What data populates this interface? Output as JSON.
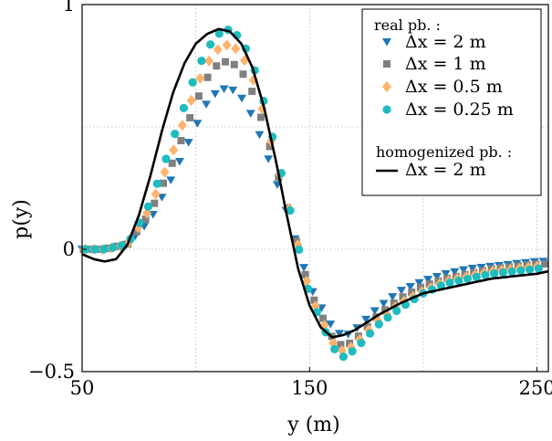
{
  "chart_data": {
    "type": "scatter",
    "xlabel": "y (m)",
    "ylabel": "p(y)",
    "xlim": [
      50,
      255
    ],
    "ylim": [
      -0.5,
      1
    ],
    "grid": true,
    "x_ticks": [
      50,
      150,
      250
    ],
    "x_tick_labels": [
      "50",
      "150",
      "250"
    ],
    "y_ticks": [
      -0.5,
      0,
      1
    ],
    "y_tick_labels": [
      "−0.5",
      "0",
      "1"
    ],
    "legend": {
      "placement": "top-right",
      "group1_title": "real pb. :",
      "group2_title": "homogenized pb. :"
    },
    "series": [
      {
        "name": "Δx = 2 m",
        "kind": "markers",
        "marker": "triangle-down",
        "color": "#1f77b4",
        "x": [
          50,
          60,
          70,
          80,
          90,
          100,
          105,
          110,
          115,
          120,
          125,
          130,
          140,
          150,
          160,
          165,
          170,
          180,
          190,
          200,
          210,
          220,
          230,
          240,
          250,
          255
        ],
        "y": [
          0,
          0,
          0.02,
          0.12,
          0.3,
          0.5,
          0.6,
          0.65,
          0.66,
          0.62,
          0.54,
          0.42,
          0.15,
          -0.15,
          -0.32,
          -0.36,
          -0.33,
          -0.24,
          -0.17,
          -0.13,
          -0.1,
          -0.08,
          -0.07,
          -0.06,
          -0.05,
          -0.05
        ]
      },
      {
        "name": "Δx = 1 m",
        "kind": "markers",
        "marker": "square",
        "color": "#808080",
        "x": [
          50,
          60,
          70,
          80,
          90,
          100,
          105,
          110,
          115,
          120,
          125,
          130,
          140,
          150,
          160,
          165,
          170,
          180,
          190,
          200,
          210,
          220,
          230,
          240,
          250,
          255
        ],
        "y": [
          0,
          0,
          0.02,
          0.15,
          0.36,
          0.6,
          0.7,
          0.76,
          0.77,
          0.73,
          0.64,
          0.5,
          0.18,
          -0.17,
          -0.36,
          -0.4,
          -0.37,
          -0.27,
          -0.2,
          -0.15,
          -0.12,
          -0.1,
          -0.08,
          -0.07,
          -0.06,
          -0.06
        ]
      },
      {
        "name": "Δx = 0.5 m",
        "kind": "markers",
        "marker": "diamond",
        "color": "#ffb36b",
        "x": [
          50,
          60,
          70,
          80,
          90,
          100,
          105,
          110,
          115,
          120,
          125,
          130,
          140,
          150,
          160,
          165,
          170,
          180,
          190,
          200,
          210,
          220,
          230,
          240,
          250,
          255
        ],
        "y": [
          0,
          0,
          0.02,
          0.17,
          0.4,
          0.66,
          0.76,
          0.82,
          0.84,
          0.8,
          0.7,
          0.55,
          0.2,
          -0.18,
          -0.38,
          -0.42,
          -0.39,
          -0.29,
          -0.22,
          -0.17,
          -0.13,
          -0.11,
          -0.09,
          -0.08,
          -0.07,
          -0.06
        ]
      },
      {
        "name": "Δx = 0.25 m",
        "kind": "markers",
        "marker": "circle",
        "color": "#1ebcbf",
        "x": [
          50,
          60,
          70,
          80,
          90,
          100,
          105,
          110,
          115,
          120,
          125,
          130,
          140,
          150,
          160,
          165,
          170,
          180,
          190,
          200,
          210,
          220,
          230,
          240,
          250,
          255
        ],
        "y": [
          0,
          0,
          0.02,
          0.19,
          0.45,
          0.72,
          0.82,
          0.88,
          0.9,
          0.86,
          0.76,
          0.6,
          0.22,
          -0.19,
          -0.4,
          -0.44,
          -0.41,
          -0.31,
          -0.24,
          -0.18,
          -0.14,
          -0.12,
          -0.1,
          -0.09,
          -0.08,
          -0.07
        ]
      },
      {
        "name": "Δx = 2 m",
        "kind": "line",
        "color": "#000000",
        "group": "homogenized",
        "x": [
          50,
          55,
          60,
          65,
          70,
          75,
          80,
          85,
          90,
          95,
          100,
          105,
          110,
          115,
          120,
          125,
          130,
          135,
          140,
          145,
          150,
          155,
          160,
          165,
          170,
          175,
          180,
          190,
          200,
          210,
          220,
          230,
          240,
          250,
          255
        ],
        "y": [
          -0.02,
          -0.04,
          -0.05,
          -0.04,
          0.02,
          0.14,
          0.3,
          0.48,
          0.64,
          0.76,
          0.84,
          0.88,
          0.9,
          0.89,
          0.84,
          0.74,
          0.58,
          0.37,
          0.14,
          -0.08,
          -0.23,
          -0.32,
          -0.36,
          -0.35,
          -0.33,
          -0.3,
          -0.27,
          -0.22,
          -0.18,
          -0.16,
          -0.14,
          -0.12,
          -0.11,
          -0.1,
          -0.09
        ]
      }
    ]
  }
}
